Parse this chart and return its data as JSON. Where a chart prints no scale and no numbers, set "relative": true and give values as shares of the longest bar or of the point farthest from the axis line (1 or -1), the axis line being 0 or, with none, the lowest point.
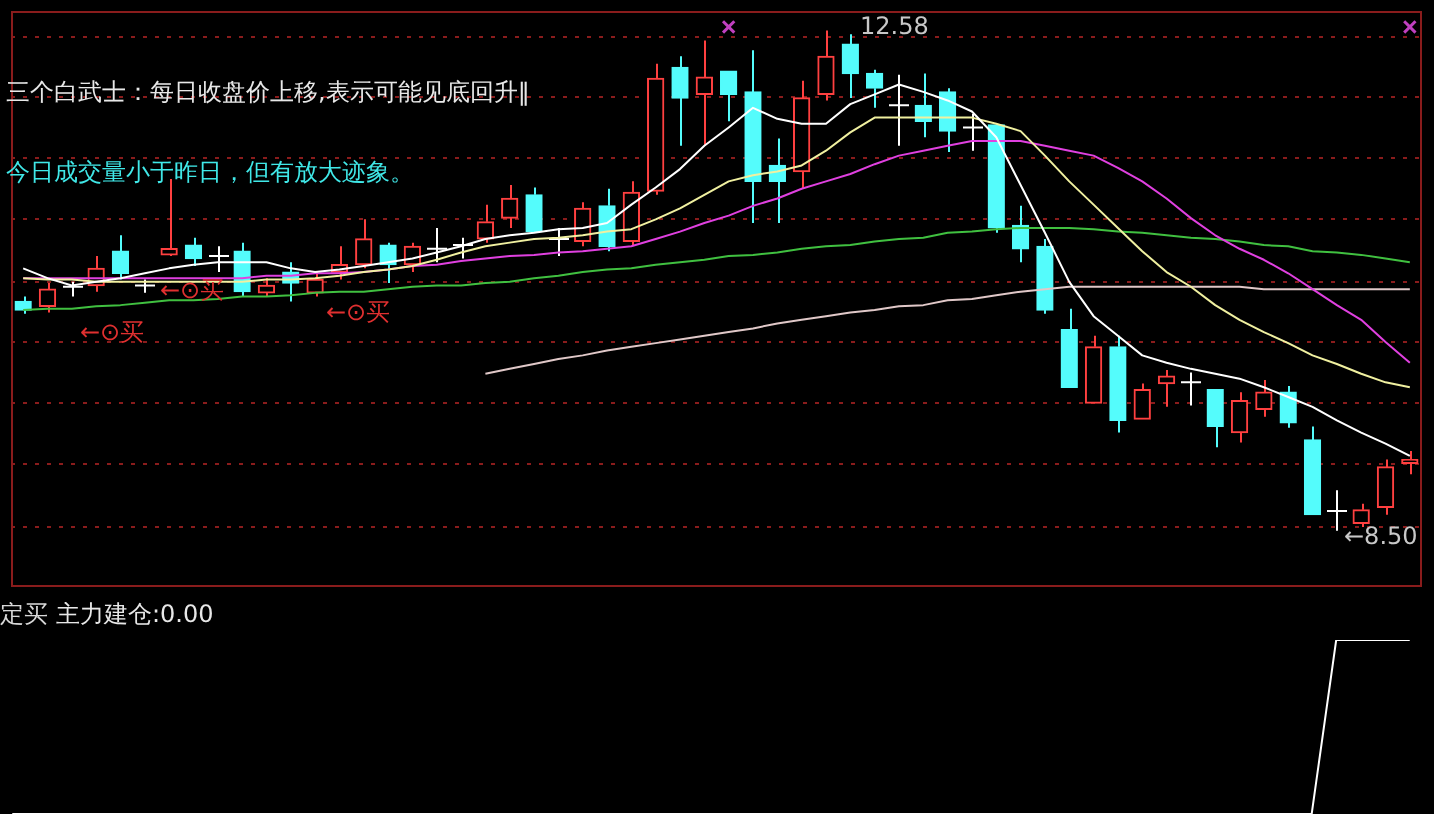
{
  "chart_data": [
    {
      "type": "candlestick",
      "categories": [
        null,
        null,
        null,
        null,
        null,
        null,
        null,
        null,
        null,
        null,
        null,
        null,
        null,
        null,
        null,
        null,
        null,
        null,
        null,
        null,
        null,
        null,
        null,
        null,
        null,
        null,
        null,
        null,
        null,
        null,
        null,
        null,
        null,
        null,
        null,
        null,
        null,
        null,
        null,
        null,
        null,
        null,
        null,
        null,
        null,
        null,
        null,
        null,
        null,
        null,
        null,
        null,
        null,
        null,
        null,
        null,
        null,
        null
      ],
      "ohlc": [
        [
          10.37,
          10.41,
          10.27,
          10.3
        ],
        [
          10.33,
          10.52,
          10.28,
          10.47
        ],
        [
          10.49,
          10.53,
          10.41,
          10.49
        ],
        [
          10.5,
          10.74,
          10.45,
          10.64
        ],
        [
          10.78,
          10.91,
          10.55,
          10.6
        ],
        [
          10.5,
          10.55,
          10.44,
          10.5
        ],
        [
          10.75,
          11.37,
          10.74,
          10.8
        ],
        [
          10.83,
          10.89,
          10.66,
          10.72
        ],
        [
          10.74,
          10.82,
          10.61,
          10.74
        ],
        [
          10.78,
          10.85,
          10.41,
          10.45
        ],
        [
          10.44,
          10.56,
          10.41,
          10.5
        ],
        [
          10.61,
          10.69,
          10.37,
          10.52
        ],
        [
          10.44,
          10.61,
          10.41,
          10.55
        ],
        [
          10.61,
          10.82,
          10.55,
          10.67
        ],
        [
          10.67,
          11.04,
          10.64,
          10.88
        ],
        [
          10.83,
          10.85,
          10.52,
          10.67
        ],
        [
          10.67,
          10.85,
          10.61,
          10.82
        ],
        [
          10.8,
          10.97,
          10.69,
          10.8
        ],
        [
          10.83,
          10.89,
          10.72,
          10.83
        ],
        [
          10.88,
          11.16,
          10.85,
          11.02
        ],
        [
          11.05,
          11.32,
          10.97,
          11.21
        ],
        [
          11.24,
          11.3,
          10.93,
          10.94
        ],
        [
          10.88,
          10.97,
          10.74,
          10.88
        ],
        [
          10.86,
          11.18,
          10.82,
          11.13
        ],
        [
          11.15,
          11.29,
          10.78,
          10.82
        ],
        [
          10.86,
          11.35,
          10.83,
          11.26
        ],
        [
          11.27,
          12.31,
          11.24,
          12.19
        ],
        [
          12.28,
          12.37,
          11.64,
          12.03
        ],
        [
          12.06,
          12.5,
          11.64,
          12.2
        ],
        [
          12.25,
          12.25,
          11.84,
          12.06
        ],
        [
          12.08,
          12.42,
          11.01,
          11.35
        ],
        [
          11.48,
          11.7,
          11.01,
          11.35
        ],
        [
          11.43,
          12.17,
          11.29,
          12.03
        ],
        [
          12.06,
          12.58,
          12.01,
          12.37
        ],
        [
          12.47,
          12.55,
          12.03,
          12.23
        ],
        [
          12.23,
          12.26,
          11.95,
          12.11
        ],
        [
          11.97,
          12.22,
          11.64,
          11.97
        ],
        [
          11.97,
          12.23,
          11.71,
          11.84
        ],
        [
          12.08,
          12.11,
          11.59,
          11.76
        ],
        [
          11.79,
          11.9,
          11.6,
          11.79
        ],
        [
          11.81,
          11.81,
          10.93,
          10.97
        ],
        [
          10.99,
          11.15,
          10.69,
          10.8
        ],
        [
          10.82,
          10.88,
          10.27,
          10.3
        ],
        [
          10.14,
          10.31,
          9.67,
          9.67
        ],
        [
          9.54,
          10.09,
          9.54,
          10.0
        ],
        [
          10.0,
          10.09,
          9.3,
          9.4
        ],
        [
          9.41,
          9.7,
          9.41,
          9.65
        ],
        [
          9.7,
          9.81,
          9.51,
          9.76
        ],
        [
          9.71,
          9.79,
          9.52,
          9.71
        ],
        [
          9.65,
          9.65,
          9.18,
          9.35
        ],
        [
          9.3,
          9.63,
          9.22,
          9.56
        ],
        [
          9.49,
          9.73,
          9.43,
          9.63
        ],
        [
          9.63,
          9.68,
          9.34,
          9.38
        ],
        [
          9.24,
          9.35,
          8.63,
          8.63
        ],
        [
          8.66,
          8.83,
          8.5,
          8.66
        ],
        [
          8.56,
          8.72,
          8.53,
          8.67
        ],
        [
          8.69,
          9.08,
          8.63,
          9.02
        ],
        [
          9.05,
          9.15,
          8.96,
          9.08
        ]
      ],
      "colors": [
        "#54fcfc",
        "#ff4040",
        "#ffffff",
        "#ff4040",
        "#54fcfc",
        "#ffffff",
        "#ff4040",
        "#54fcfc",
        "#ffffff",
        "#54fcfc",
        "#ff4040",
        "#54fcfc",
        "#ff4040",
        "#ff4040",
        "#ff4040",
        "#54fcfc",
        "#ff4040",
        "#ffffff",
        "#ffffff",
        "#ff4040",
        "#ff4040",
        "#54fcfc",
        "#ffffff",
        "#ff4040",
        "#54fcfc",
        "#ff4040",
        "#ff4040",
        "#54fcfc",
        "#ff4040",
        "#54fcfc",
        "#54fcfc",
        "#54fcfc",
        "#ff4040",
        "#ff4040",
        "#54fcfc",
        "#54fcfc",
        "#ffffff",
        "#54fcfc",
        "#54fcfc",
        "#ffffff",
        "#54fcfc",
        "#54fcfc",
        "#54fcfc",
        "#54fcfc",
        "#ff4040",
        "#54fcfc",
        "#ff4040",
        "#ff4040",
        "#ffffff",
        "#54fcfc",
        "#ff4040",
        "#ff4040",
        "#54fcfc",
        "#54fcfc",
        "#ffffff",
        "#ff4040",
        "#ff4040",
        "#ff4040"
      ],
      "series": [
        {
          "type": "line",
          "color": "#ffffff",
          "values": [
            10.64,
            10.56,
            10.5,
            10.53,
            10.56,
            10.6,
            10.64,
            10.67,
            10.69,
            10.69,
            10.69,
            10.64,
            10.61,
            10.63,
            10.66,
            10.69,
            10.72,
            10.77,
            10.82,
            10.88,
            10.91,
            10.93,
            10.96,
            10.97,
            11.01,
            11.16,
            11.3,
            11.45,
            11.64,
            11.79,
            11.95,
            11.86,
            11.82,
            11.82,
            11.98,
            12.06,
            12.14,
            12.08,
            12.01,
            11.92,
            11.71,
            11.32,
            10.93,
            10.53,
            10.25,
            10.09,
            9.93,
            9.87,
            9.82,
            9.78,
            9.74,
            9.67,
            9.59,
            9.51,
            9.4,
            9.3,
            9.21,
            9.11
          ]
        },
        {
          "type": "line",
          "color": "#f0f0a0",
          "values": [
            10.56,
            10.55,
            10.55,
            10.53,
            10.53,
            10.53,
            10.53,
            10.53,
            10.53,
            10.53,
            10.55,
            10.55,
            10.56,
            10.58,
            10.61,
            10.63,
            10.66,
            10.71,
            10.77,
            10.82,
            10.85,
            10.88,
            10.89,
            10.91,
            10.94,
            10.96,
            11.04,
            11.13,
            11.24,
            11.35,
            11.4,
            11.43,
            11.48,
            11.6,
            11.75,
            11.87,
            11.87,
            11.87,
            11.87,
            11.87,
            11.82,
            11.76,
            11.56,
            11.35,
            11.16,
            10.97,
            10.78,
            10.61,
            10.49,
            10.34,
            10.22,
            10.12,
            10.03,
            9.93,
            9.86,
            9.78,
            9.71,
            9.67
          ]
        },
        {
          "type": "line",
          "color": "#e040e0",
          "values": [
            10.56,
            10.56,
            10.56,
            10.56,
            10.56,
            10.56,
            10.56,
            10.56,
            10.56,
            10.56,
            10.58,
            10.58,
            10.6,
            10.6,
            10.61,
            10.63,
            10.66,
            10.67,
            10.7,
            10.72,
            10.74,
            10.75,
            10.77,
            10.78,
            10.8,
            10.82,
            10.88,
            10.94,
            11.01,
            11.07,
            11.15,
            11.21,
            11.29,
            11.35,
            11.41,
            11.49,
            11.56,
            11.6,
            11.64,
            11.68,
            11.68,
            11.68,
            11.64,
            11.6,
            11.56,
            11.46,
            11.35,
            11.21,
            11.05,
            10.91,
            10.8,
            10.71,
            10.6,
            10.47,
            10.34,
            10.22,
            10.04,
            9.87
          ]
        },
        {
          "type": "line",
          "color": "#40c040",
          "values": [
            10.3,
            10.31,
            10.31,
            10.33,
            10.34,
            10.36,
            10.38,
            10.38,
            10.39,
            10.41,
            10.41,
            10.42,
            10.44,
            10.45,
            10.45,
            10.47,
            10.49,
            10.5,
            10.5,
            10.52,
            10.53,
            10.56,
            10.58,
            10.61,
            10.63,
            10.64,
            10.67,
            10.69,
            10.71,
            10.74,
            10.75,
            10.77,
            10.8,
            10.82,
            10.83,
            10.86,
            10.88,
            10.89,
            10.93,
            10.94,
            10.96,
            10.97,
            10.97,
            10.97,
            10.96,
            10.94,
            10.93,
            10.91,
            10.89,
            10.88,
            10.86,
            10.83,
            10.82,
            10.78,
            10.77,
            10.75,
            10.72,
            10.69
          ]
        },
        {
          "type": "line",
          "color": "#e0c8c8",
          "values": [
            null,
            null,
            null,
            null,
            null,
            null,
            null,
            null,
            null,
            null,
            null,
            null,
            null,
            null,
            null,
            null,
            null,
            null,
            null,
            9.78,
            9.82,
            9.86,
            9.9,
            9.93,
            9.97,
            10.0,
            10.03,
            10.06,
            10.09,
            10.12,
            10.15,
            10.19,
            10.22,
            10.25,
            10.28,
            10.3,
            10.33,
            10.34,
            10.38,
            10.39,
            10.42,
            10.45,
            10.47,
            10.49,
            10.49,
            10.49,
            10.49,
            10.49,
            10.49,
            10.49,
            10.49,
            10.47,
            10.47,
            10.47,
            10.47,
            10.47,
            10.47,
            10.47
          ]
        },
        {
          "type": "scatter",
          "color": "#c040c0",
          "marker": "cross",
          "values": [
            null,
            null,
            null,
            null,
            null,
            null,
            null,
            null,
            null,
            null,
            null,
            null,
            null,
            null,
            null,
            null,
            null,
            null,
            null,
            null,
            null,
            null,
            null,
            null,
            null,
            null,
            null,
            null,
            null,
            12.61,
            null,
            null,
            null,
            null,
            null,
            null,
            null,
            null,
            null,
            null,
            null,
            null,
            null,
            null,
            null,
            null,
            null,
            null,
            null,
            null,
            null,
            null,
            null,
            null,
            null,
            null,
            null,
            12.61
          ]
        }
      ],
      "ylim": [
        8.04,
        12.74
      ],
      "yticks": [
        {
          "value": 8.53,
          "label": null
        },
        {
          "value": 9.04,
          "label": null
        },
        {
          "value": 9.54,
          "label": null
        },
        {
          "value": 10.04,
          "label": null
        },
        {
          "value": 10.53,
          "label": null
        },
        {
          "value": 11.04,
          "label": null
        },
        {
          "value": 11.54,
          "label": null
        },
        {
          "value": 12.04,
          "label": null
        },
        {
          "value": 12.53,
          "label": null
        }
      ],
      "grid": "y",
      "tick_labels": false,
      "annotations": [
        "三个白武士：每日收盘价上移,表示可能见底回升‖",
        "今日成交量小于昨日，但有放大迹象。",
        "←⊙买",
        "←⊙买",
        "←⊙买",
        "12.58",
        "←8.50"
      ]
    },
    {
      "type": "line",
      "relative": true,
      "categories": [
        null,
        null,
        null,
        null,
        null,
        null,
        null,
        null,
        null,
        null,
        null,
        null,
        null,
        null,
        null,
        null,
        null,
        null,
        null,
        null,
        null,
        null,
        null,
        null,
        null,
        null,
        null,
        null,
        null,
        null,
        null,
        null,
        null,
        null,
        null,
        null,
        null,
        null,
        null,
        null,
        null,
        null,
        null,
        null,
        null,
        null,
        null,
        null,
        null,
        null,
        null,
        null,
        null,
        null,
        null,
        null,
        null,
        null
      ],
      "series": [
        {
          "color": "#ffffff",
          "values": [
            0,
            0,
            0,
            0,
            0,
            0,
            0,
            0,
            0,
            0,
            0,
            0,
            0,
            0,
            0,
            0,
            0,
            0,
            0,
            0,
            0,
            0,
            0,
            0,
            0,
            0,
            0,
            0,
            0,
            0,
            0,
            0,
            0,
            0,
            0,
            0,
            0,
            0,
            0,
            0,
            0,
            0,
            0,
            0,
            0,
            0,
            0,
            0,
            0,
            0,
            0,
            0,
            0,
            0,
            1,
            1,
            1,
            1
          ]
        }
      ],
      "annotations": [
        "定买",
        "主力建仓:0.00"
      ]
    }
  ]
}
